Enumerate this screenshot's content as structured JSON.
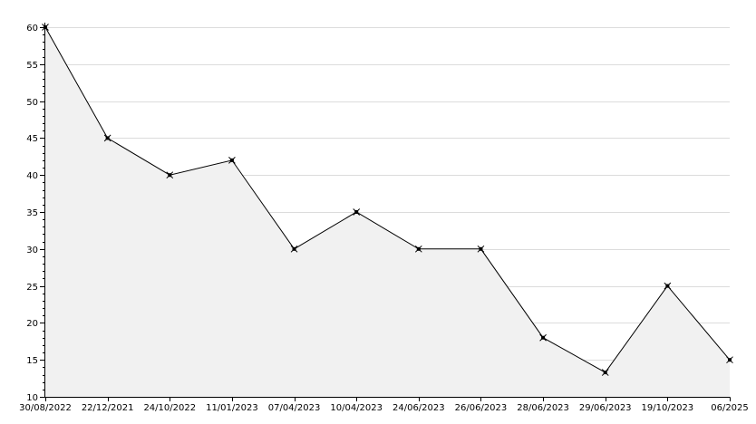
{
  "chart_data": {
    "type": "area",
    "x": [
      "30/08/2022",
      "22/12/2021",
      "24/10/2022",
      "11/01/2023",
      "07/04/2023",
      "10/04/2023",
      "24/06/2023",
      "26/06/2023",
      "28/06/2023",
      "29/06/2023",
      "19/10/2023",
      "06/2025"
    ],
    "y": [
      60,
      45,
      40,
      42,
      30,
      35,
      30,
      30,
      18,
      13.3,
      25,
      15
    ],
    "ylim": [
      10,
      60
    ],
    "yticks": [
      10,
      15,
      20,
      25,
      30,
      35,
      40,
      45,
      50,
      55,
      60
    ],
    "grid": true,
    "legend": "none",
    "colors": {
      "line": "#000000",
      "fill": "#f1f1f1",
      "grid": "#dcdcdc",
      "marker": "#000000"
    }
  }
}
